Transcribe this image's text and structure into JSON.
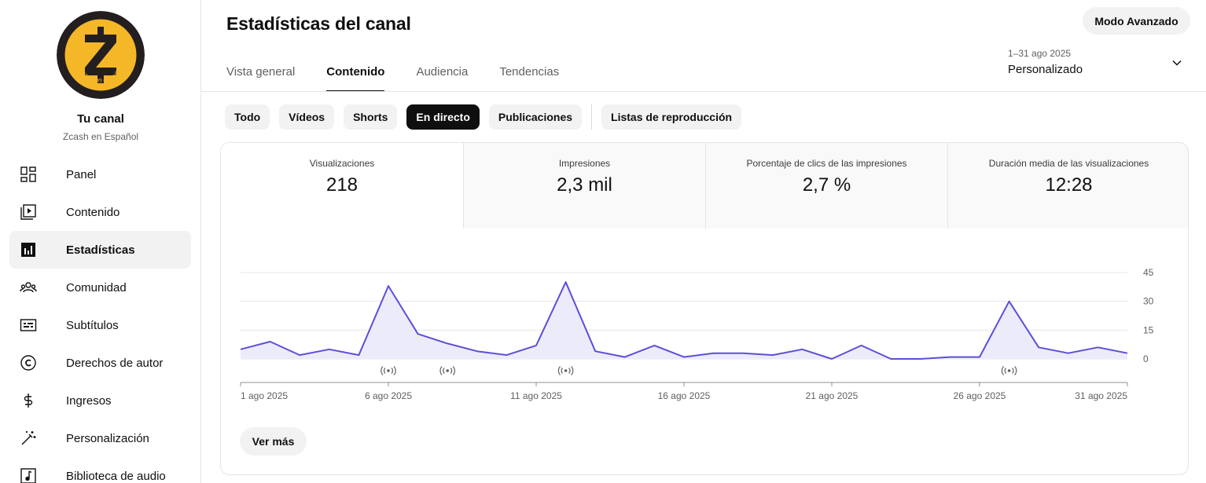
{
  "sidebar": {
    "avatar_text": "Zcash en español",
    "channel_title": "Tu canal",
    "channel_name": "Zcash en Español",
    "items": [
      {
        "label": "Panel",
        "icon": "dashboard-icon"
      },
      {
        "label": "Contenido",
        "icon": "content-icon"
      },
      {
        "label": "Estadísticas",
        "icon": "analytics-icon",
        "active": true
      },
      {
        "label": "Comunidad",
        "icon": "community-icon"
      },
      {
        "label": "Subtítulos",
        "icon": "subtitles-icon"
      },
      {
        "label": "Derechos de autor",
        "icon": "copyright-icon"
      },
      {
        "label": "Ingresos",
        "icon": "dollar-icon"
      },
      {
        "label": "Personalización",
        "icon": "magic-wand-icon"
      },
      {
        "label": "Biblioteca de audio",
        "icon": "audio-library-icon"
      }
    ]
  },
  "header": {
    "title": "Estadísticas del canal",
    "advanced_mode": "Modo Avanzado",
    "tabs": [
      {
        "label": "Vista general"
      },
      {
        "label": "Contenido",
        "active": true
      },
      {
        "label": "Audiencia"
      },
      {
        "label": "Tendencias"
      }
    ],
    "date_range": {
      "dates": "1–31 ago 2025",
      "label": "Personalizado"
    }
  },
  "chips": [
    {
      "label": "Todo"
    },
    {
      "label": "Vídeos"
    },
    {
      "label": "Shorts"
    },
    {
      "label": "En directo",
      "active": true
    },
    {
      "label": "Publicaciones"
    },
    {
      "label": "Listas de reproducción"
    }
  ],
  "metrics": [
    {
      "label": "Visualizaciones",
      "value": "218",
      "active": true
    },
    {
      "label": "Impresiones",
      "value": "2,3 mil"
    },
    {
      "label": "Porcentaje de clics de las impresiones",
      "value": "2,7 %"
    },
    {
      "label": "Duración media de las visualizaciones",
      "value": "12:28"
    }
  ],
  "chart_data": {
    "type": "area",
    "x": [
      1,
      2,
      3,
      4,
      5,
      6,
      7,
      8,
      9,
      10,
      11,
      12,
      13,
      14,
      15,
      16,
      17,
      18,
      19,
      20,
      21,
      22,
      23,
      24,
      25,
      26,
      27,
      28,
      29,
      30,
      31
    ],
    "series": [
      {
        "values": [
          5,
          9,
          2,
          5,
          2,
          38,
          13,
          8,
          4,
          2,
          7,
          40,
          4,
          1,
          7,
          1,
          3,
          3,
          2,
          5,
          0,
          7,
          0,
          0,
          1,
          1,
          30,
          6,
          3,
          6,
          3
        ]
      }
    ],
    "ylim": [
      0,
      45
    ],
    "yticks": [
      0,
      15,
      30,
      45
    ],
    "xtick_days": [
      1,
      6,
      11,
      16,
      21,
      26,
      31
    ],
    "xtick_labels": [
      "1 ago 2025",
      "6 ago 2025",
      "11 ago 2025",
      "16 ago 2025",
      "21 ago 2025",
      "26 ago 2025",
      "31 ago 2025"
    ],
    "live_marker_days": [
      6,
      8,
      12,
      27
    ],
    "line_color": "#5c4fd6",
    "fill_color": "#ecebfa",
    "grid": true
  },
  "more_button": "Ver más"
}
